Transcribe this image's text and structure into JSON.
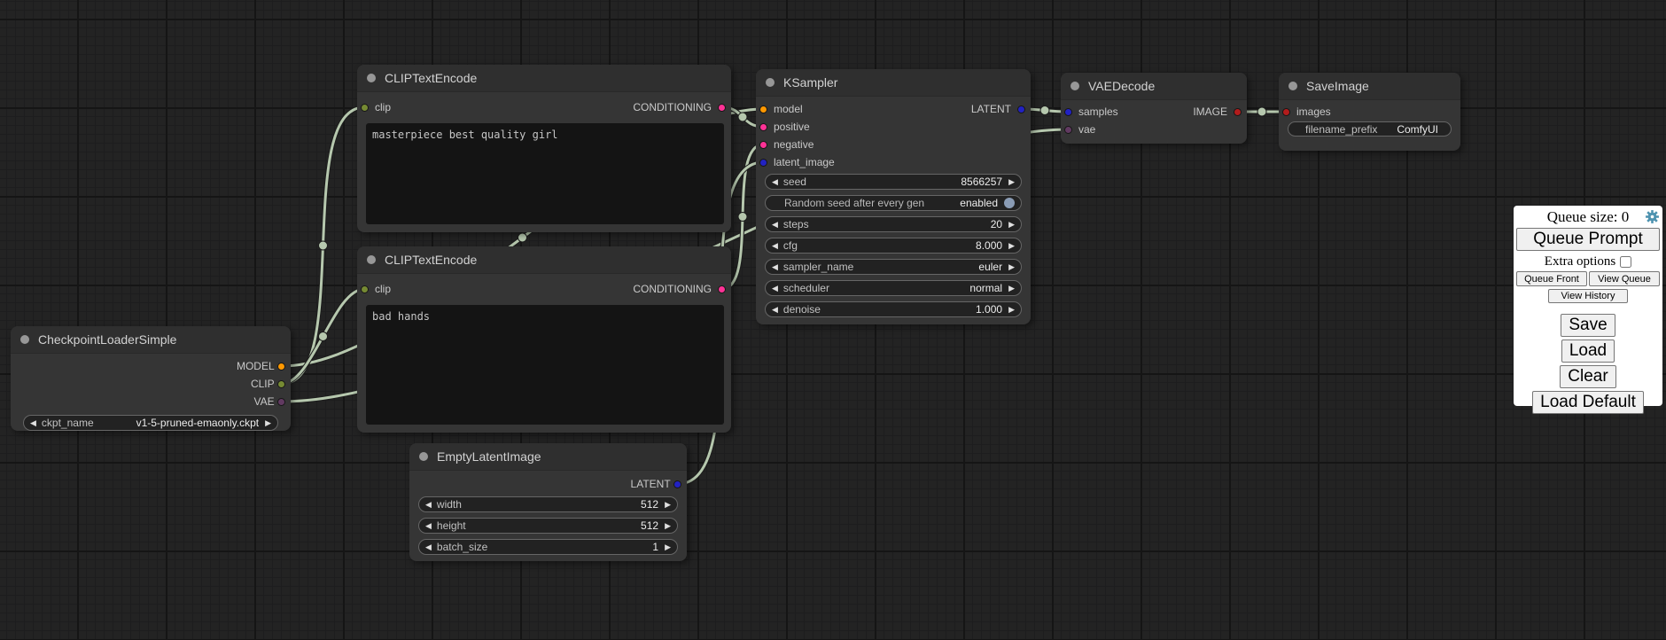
{
  "colors": {
    "link": "#b6c8ae",
    "port_model": "#ff9800",
    "port_clip": "#768a33",
    "port_vae": "#613a61",
    "port_conditioning": "#ff3296",
    "port_latent": "#2222c2",
    "port_image": "#b21c1c",
    "toggle_enabled": "#8a9cb5",
    "gear": "#4e93b0"
  },
  "icons": {
    "arrow_left": "◀",
    "arrow_right": "▶"
  },
  "nodes": {
    "checkpoint": {
      "title": "CheckpointLoaderSimple",
      "outputs": [
        {
          "name": "MODEL"
        },
        {
          "name": "CLIP"
        },
        {
          "name": "VAE"
        }
      ],
      "widget": {
        "label": "ckpt_name",
        "value": "v1-5-pruned-emaonly.ckpt"
      }
    },
    "clip1": {
      "title": "CLIPTextEncode",
      "input": "clip",
      "output": "CONDITIONING",
      "text": "masterpiece best quality girl"
    },
    "clip2": {
      "title": "CLIPTextEncode",
      "input": "clip",
      "output": "CONDITIONING",
      "text": "bad hands"
    },
    "latent": {
      "title": "EmptyLatentImage",
      "output": "LATENT",
      "widgets": [
        {
          "label": "width",
          "value": "512"
        },
        {
          "label": "height",
          "value": "512"
        },
        {
          "label": "batch_size",
          "value": "1"
        }
      ]
    },
    "ksampler": {
      "title": "KSampler",
      "inputs": [
        "model",
        "positive",
        "negative",
        "latent_image"
      ],
      "output": "LATENT",
      "seed": {
        "label": "seed",
        "value": "8566257"
      },
      "random": {
        "label": "Random seed after every gen",
        "value": "enabled"
      },
      "widgets": [
        {
          "label": "steps",
          "value": "20"
        },
        {
          "label": "cfg",
          "value": "8.000"
        },
        {
          "label": "sampler_name",
          "value": "euler"
        },
        {
          "label": "scheduler",
          "value": "normal"
        },
        {
          "label": "denoise",
          "value": "1.000"
        }
      ]
    },
    "vaedecode": {
      "title": "VAEDecode",
      "inputs": [
        "samples",
        "vae"
      ],
      "output": "IMAGE"
    },
    "save": {
      "title": "SaveImage",
      "input": "images",
      "widget": {
        "label": "filename_prefix",
        "value": "ComfyUI"
      }
    }
  },
  "links": [
    {
      "from": "checkpoint:MODEL",
      "to": "ksampler:model"
    },
    {
      "from": "checkpoint:CLIP",
      "to": "clip1:clip"
    },
    {
      "from": "checkpoint:CLIP",
      "to": "clip2:clip"
    },
    {
      "from": "checkpoint:VAE",
      "to": "vaedecode:vae"
    },
    {
      "from": "clip1:CONDITIONING",
      "to": "ksampler:positive"
    },
    {
      "from": "clip2:CONDITIONING",
      "to": "ksampler:negative"
    },
    {
      "from": "latent:LATENT",
      "to": "ksampler:latent_image"
    },
    {
      "from": "ksampler:LATENT",
      "to": "vaedecode:samples"
    },
    {
      "from": "vaedecode:IMAGE",
      "to": "save:images"
    }
  ],
  "queue": {
    "size_label": "Queue size: 0",
    "queue_prompt": "Queue Prompt",
    "extra_options": "Extra options",
    "queue_front": "Queue Front",
    "view_queue": "View Queue",
    "view_history": "View History",
    "save": "Save",
    "load": "Load",
    "clear": "Clear",
    "load_default": "Load Default"
  }
}
